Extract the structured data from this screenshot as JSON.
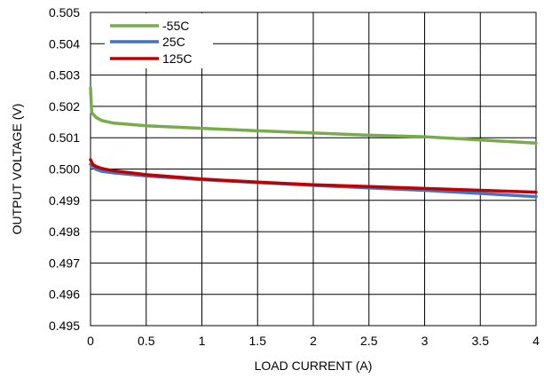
{
  "chart_data": {
    "type": "line",
    "title": "",
    "xlabel": "LOAD CURRENT (A)",
    "ylabel": "OUTPUT VOLTAGE (V)",
    "xlim": [
      0,
      4
    ],
    "ylim": [
      0.495,
      0.505
    ],
    "x_ticks": [
      "0",
      "0.5",
      "1",
      "1.5",
      "2",
      "2.5",
      "3",
      "3.5",
      "4"
    ],
    "y_ticks": [
      "0.495",
      "0.496",
      "0.497",
      "0.498",
      "0.499",
      "0.500",
      "0.501",
      "0.502",
      "0.503",
      "0.504",
      "0.505"
    ],
    "grid": true,
    "legend_position": "top-left",
    "series": [
      {
        "name": "-55C",
        "color": "#77ac4a",
        "points": [
          [
            0,
            0.5026
          ],
          [
            0.01,
            0.5018
          ],
          [
            0.05,
            0.50165
          ],
          [
            0.1,
            0.50155
          ],
          [
            0.2,
            0.50147
          ],
          [
            0.5,
            0.50138
          ],
          [
            1.0,
            0.5013
          ],
          [
            1.5,
            0.50122
          ],
          [
            2.0,
            0.50115
          ],
          [
            2.5,
            0.50108
          ],
          [
            3.0,
            0.50103
          ],
          [
            3.5,
            0.50093
          ],
          [
            4.0,
            0.50083
          ]
        ]
      },
      {
        "name": "25C",
        "color": "#4472c4",
        "points": [
          [
            0,
            0.50015
          ],
          [
            0.05,
            0.49999
          ],
          [
            0.1,
            0.49993
          ],
          [
            0.2,
            0.49988
          ],
          [
            0.5,
            0.49978
          ],
          [
            1.0,
            0.49966
          ],
          [
            1.5,
            0.49957
          ],
          [
            2.0,
            0.49948
          ],
          [
            2.5,
            0.4994
          ],
          [
            3.0,
            0.49932
          ],
          [
            3.5,
            0.49922
          ],
          [
            4.0,
            0.49912
          ]
        ]
      },
      {
        "name": "125C",
        "color": "#c00000",
        "points": [
          [
            0,
            0.5003
          ],
          [
            0.02,
            0.50015
          ],
          [
            0.05,
            0.50008
          ],
          [
            0.1,
            0.50002
          ],
          [
            0.2,
            0.49995
          ],
          [
            0.5,
            0.49982
          ],
          [
            1.0,
            0.49968
          ],
          [
            1.5,
            0.49958
          ],
          [
            2.0,
            0.4995
          ],
          [
            2.5,
            0.49944
          ],
          [
            3.0,
            0.49938
          ],
          [
            3.5,
            0.49932
          ],
          [
            4.0,
            0.49926
          ]
        ]
      }
    ]
  }
}
